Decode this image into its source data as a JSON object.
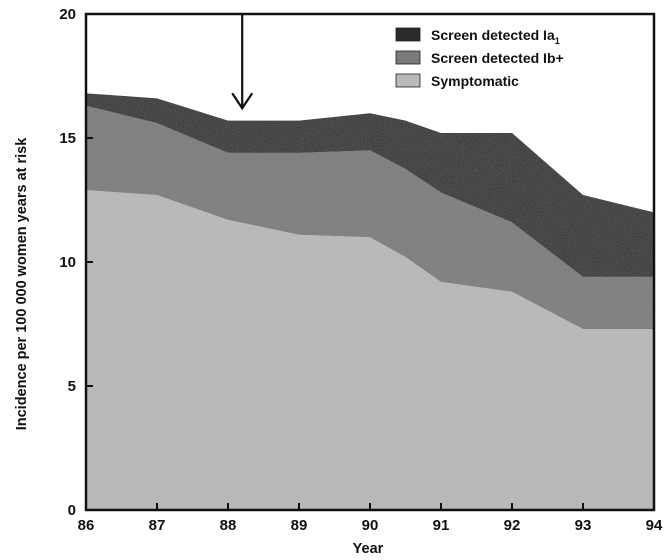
{
  "chart_data": {
    "type": "area",
    "stacked": true,
    "x": [
      86,
      87,
      88,
      89,
      90,
      91,
      92,
      93,
      94
    ],
    "xtick_labels": [
      "86",
      "87",
      "88",
      "89",
      "90",
      "91",
      "92",
      "93",
      "94"
    ],
    "yticks": [
      0,
      5,
      10,
      15,
      20
    ],
    "ytick_labels": [
      "0",
      "5",
      "10",
      "15",
      "20"
    ],
    "xlim": [
      86,
      94
    ],
    "ylim": [
      0,
      20
    ],
    "xlabel": "Year",
    "ylabel": "Incidence per 100 000 women years at risk",
    "grid": false,
    "legend_position": "top-right",
    "legend": [
      {
        "base": "Screen detected Ia",
        "sub": "1",
        "color": "#2b2b2b"
      },
      {
        "base": "Screen detected Ib+",
        "sub": "",
        "color": "#7a7a7a"
      },
      {
        "base": "Symptomatic",
        "sub": "",
        "color": "#b9b9b9"
      }
    ],
    "series": [
      {
        "name": "Symptomatic",
        "color": "#b9b9b9",
        "points": [
          [
            86,
            12.9
          ],
          [
            87,
            12.7
          ],
          [
            88,
            11.7
          ],
          [
            89,
            11.1
          ],
          [
            90,
            11.0
          ],
          [
            90.5,
            10.2
          ],
          [
            91,
            9.2
          ],
          [
            92,
            8.8
          ],
          [
            93,
            7.3
          ],
          [
            94,
            7.3
          ]
        ]
      },
      {
        "name": "Screen detected Ib+",
        "color": "#7a7a7a",
        "points": [
          [
            86,
            3.4
          ],
          [
            87,
            2.9
          ],
          [
            88,
            2.7
          ],
          [
            89,
            3.3
          ],
          [
            90,
            3.5
          ],
          [
            91,
            3.6
          ],
          [
            92,
            2.8
          ],
          [
            93,
            2.1
          ],
          [
            94,
            2.1
          ]
        ]
      },
      {
        "name": "Screen detected Ia1",
        "color": "#2b2b2b",
        "points": [
          [
            86,
            0.5
          ],
          [
            87,
            1.0
          ],
          [
            88,
            1.3
          ],
          [
            89,
            1.3
          ],
          [
            90,
            1.5
          ],
          [
            91,
            2.4
          ],
          [
            92,
            3.6
          ],
          [
            93,
            3.3
          ],
          [
            94,
            2.6
          ]
        ]
      }
    ],
    "annotations": [
      {
        "type": "arrow",
        "x": 88.2,
        "y_from": 20,
        "y_to": 16.2,
        "direction": "down"
      }
    ]
  }
}
